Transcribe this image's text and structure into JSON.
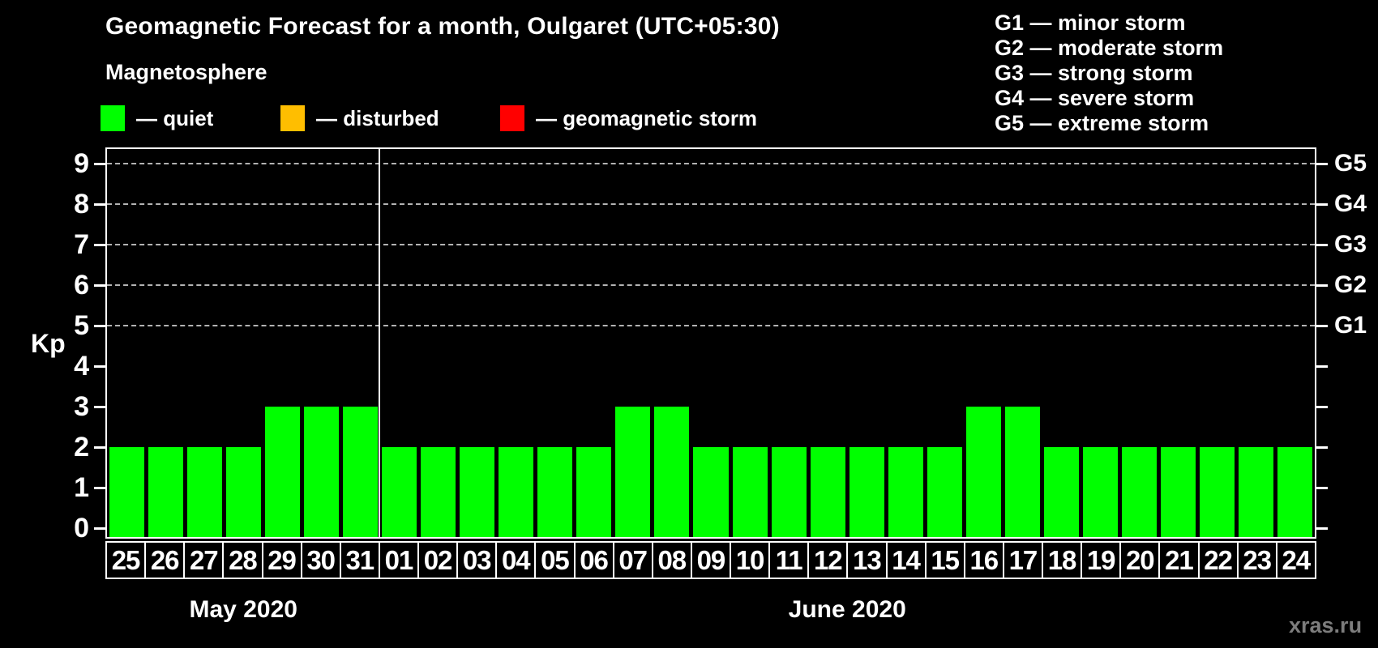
{
  "title": "Geomagnetic Forecast for a month, Oulgaret (UTC+05:30)",
  "legend": {
    "title": "Magnetosphere",
    "items": [
      {
        "name": "quiet",
        "label": "— quiet",
        "color": "#00ff00"
      },
      {
        "name": "disturbed",
        "label": "— disturbed",
        "color": "#ffbe00"
      },
      {
        "name": "geomagnetic-storm",
        "label": "— geomagnetic storm",
        "color": "#ff0000"
      }
    ]
  },
  "storm_scale_legend": {
    "items": [
      "G1 — minor storm",
      "G2 — moderate storm",
      "G3 — strong storm",
      "G4 — severe storm",
      "G5 — extreme storm"
    ]
  },
  "watermark": "xras.ru",
  "chart_data": {
    "type": "bar",
    "title": "Geomagnetic Forecast for a month, Oulgaret (UTC+05:30)",
    "ylabel": "Kp",
    "ylim": [
      0,
      9.6
    ],
    "yticks": [
      0,
      1,
      2,
      3,
      4,
      5,
      6,
      7,
      8,
      9
    ],
    "gridlines_at_kp": [
      5,
      6,
      7,
      8,
      9
    ],
    "grid": "horizontal dashed lines at Kp 5-9 only",
    "legend_position": "top-left",
    "bar_color": "#00ff00",
    "right_axis": [
      {
        "label": "G1",
        "kp": 5
      },
      {
        "label": "G2",
        "kp": 6
      },
      {
        "label": "G3",
        "kp": 7
      },
      {
        "label": "G4",
        "kp": 8
      },
      {
        "label": "G5",
        "kp": 9
      }
    ],
    "months": [
      {
        "label": "May 2020",
        "days": [
          "25",
          "26",
          "27",
          "28",
          "29",
          "30",
          "31"
        ],
        "kp_values": [
          2,
          2,
          2,
          2,
          3,
          3,
          3
        ]
      },
      {
        "label": "June 2020",
        "days": [
          "01",
          "02",
          "03",
          "04",
          "05",
          "06",
          "07",
          "08",
          "09",
          "10",
          "11",
          "12",
          "13",
          "14",
          "15",
          "16",
          "17",
          "18",
          "19",
          "20",
          "21",
          "22",
          "23",
          "24"
        ],
        "kp_values": [
          2,
          2,
          2,
          2,
          2,
          2,
          3,
          3,
          2,
          2,
          2,
          2,
          2,
          2,
          2,
          3,
          3,
          2,
          2,
          2,
          2,
          2,
          2,
          2
        ]
      }
    ]
  }
}
